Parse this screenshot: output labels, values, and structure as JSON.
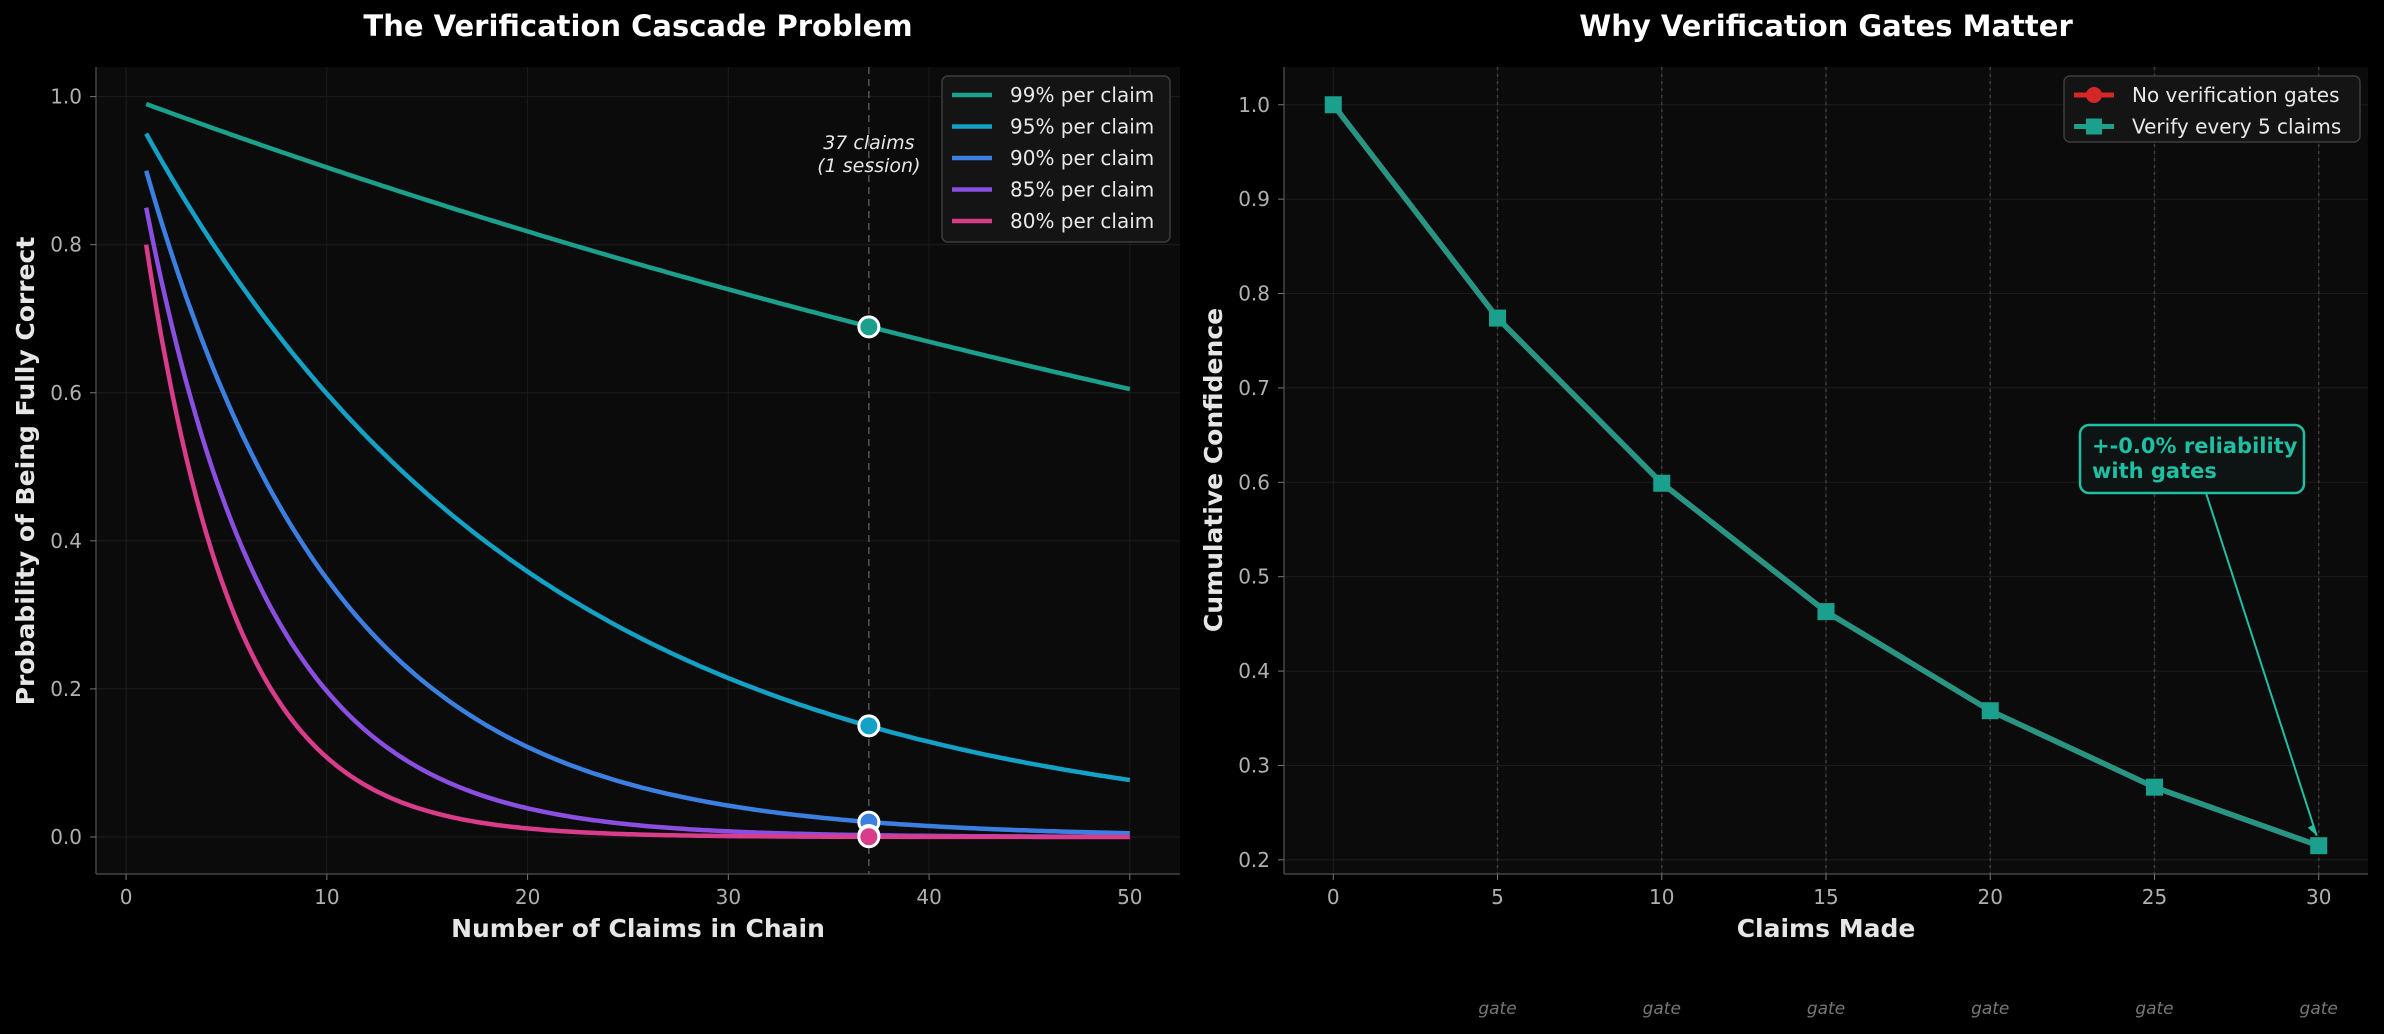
{
  "chart_data": [
    {
      "type": "line",
      "title": "The Verification Cascade Problem",
      "xlabel": "Number of Claims in Chain",
      "ylabel": "Probability of Being Fully Correct",
      "xlim": [
        -1.5,
        52.5
      ],
      "ylim": [
        -0.05,
        1.04
      ],
      "xticks": [
        0,
        10,
        20,
        30,
        40,
        50
      ],
      "yticks": [
        0.0,
        0.2,
        0.4,
        0.6,
        0.8,
        1.0
      ],
      "grid": true,
      "legend_position": "top-right",
      "x_range": [
        1,
        50
      ],
      "series": [
        {
          "name": "99% per claim",
          "base": 0.99,
          "color": "#1aa08c"
        },
        {
          "name": "95% per claim",
          "base": 0.95,
          "color": "#13a1c6"
        },
        {
          "name": "90% per claim",
          "base": 0.9,
          "color": "#3b7fe0"
        },
        {
          "name": "85% per claim",
          "base": 0.85,
          "color": "#8a4fe0"
        },
        {
          "name": "80% per claim",
          "base": 0.8,
          "color": "#d83c8a"
        }
      ],
      "marker_x": 37,
      "marker_values": [
        0.689,
        0.15,
        0.02,
        0.002,
        0.0003
      ],
      "annotation": [
        "37 claims",
        "(1 session)"
      ]
    },
    {
      "type": "line",
      "title": "Why Verification Gates Matter",
      "xlabel": "Claims Made",
      "ylabel": "Cumulative Confidence",
      "xlim": [
        -1.5,
        31.5
      ],
      "ylim": [
        0.185,
        1.04
      ],
      "xticks": [
        0,
        5,
        10,
        15,
        20,
        25,
        30
      ],
      "yticks": [
        0.2,
        0.3,
        0.4,
        0.5,
        0.6,
        0.7,
        0.8,
        0.9,
        1.0
      ],
      "grid": true,
      "legend_position": "top-right",
      "series": [
        {
          "name": "No verification gates",
          "color": "#d62728",
          "marker": "circle",
          "x": [
            0,
            5,
            10,
            15,
            20,
            25,
            30
          ],
          "values": [
            1.0,
            0.774,
            0.599,
            0.463,
            0.358,
            0.277,
            0.215
          ]
        },
        {
          "name": "Verify every 5 claims",
          "color": "#1aa08c",
          "marker": "square",
          "x": [
            0,
            5,
            10,
            15,
            20,
            25,
            30
          ],
          "values": [
            1.0,
            0.774,
            0.599,
            0.463,
            0.358,
            0.277,
            0.215
          ]
        }
      ],
      "gate_x": [
        5,
        10,
        15,
        20,
        25,
        30
      ],
      "gate_label": "gate",
      "callout": {
        "lines": [
          "+-0.0% reliability",
          "with gates"
        ],
        "target_x": 30,
        "target_y": 0.215
      }
    }
  ]
}
